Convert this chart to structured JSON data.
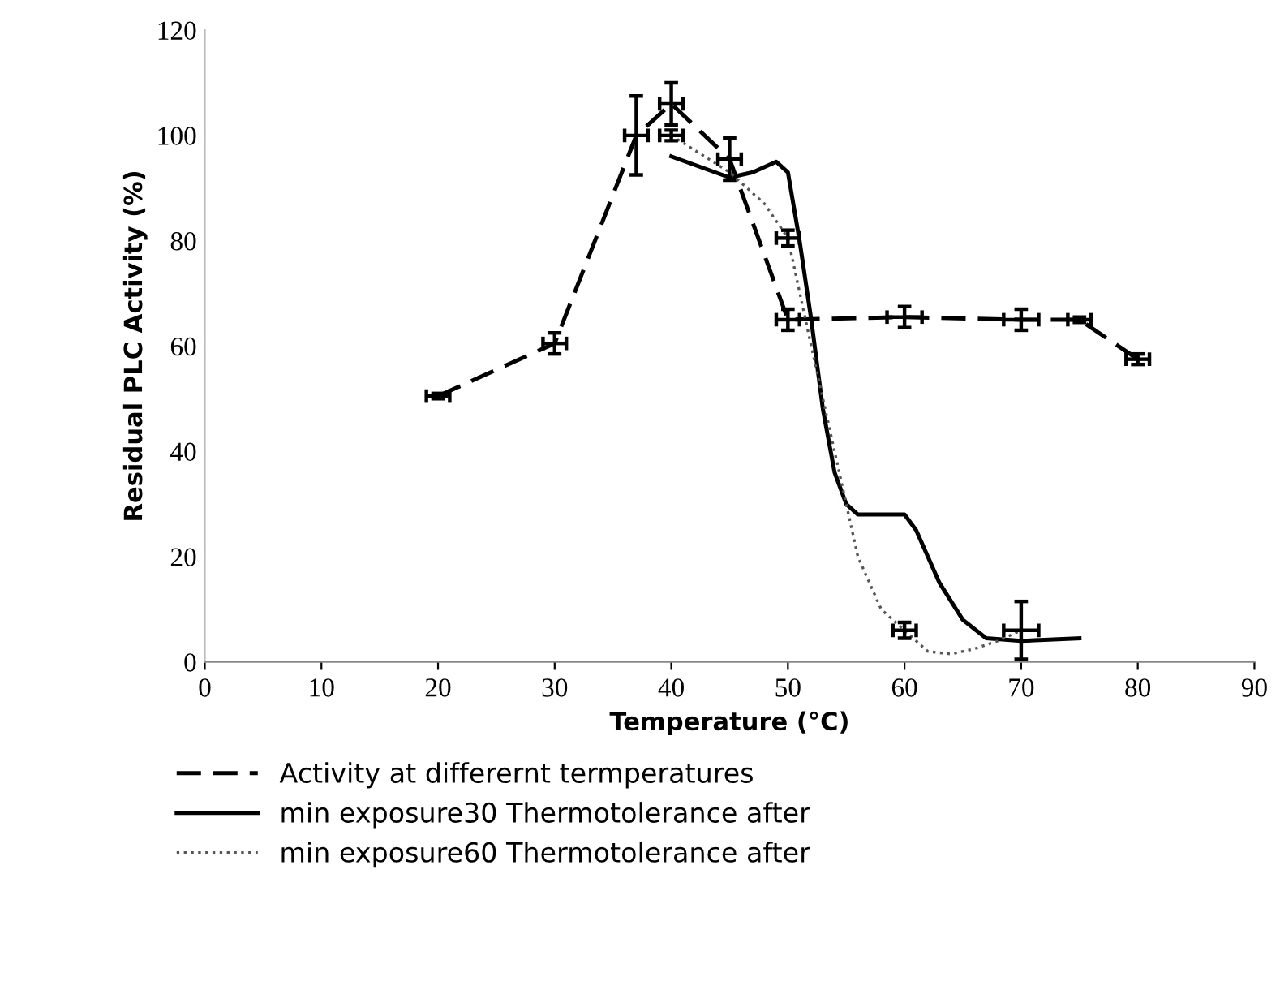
{
  "chart_data": {
    "type": "line",
    "xlabel": "Temperature (°C)",
    "ylabel": "Residual PLC Activity (%)",
    "xlim": [
      0,
      90
    ],
    "xticks": [
      0,
      10,
      20,
      30,
      40,
      50,
      60,
      70,
      80,
      90
    ],
    "ylim": [
      0,
      120
    ],
    "yticks": [
      0,
      20,
      40,
      60,
      80,
      100,
      120
    ],
    "grid": false,
    "legend": "bottom",
    "marker": "none",
    "series": [
      {
        "name": "Activity at differernt termperatures",
        "color": "#000000",
        "line_style": "dashed",
        "x": [
          20,
          30,
          37,
          40,
          45,
          50,
          60,
          70,
          75,
          80
        ],
        "values": [
          50.5,
          60.5,
          100,
          106,
          95.5,
          65,
          65.5,
          65,
          65,
          57.5
        ],
        "errors": [
          0.5,
          2,
          7.5,
          4,
          4,
          2,
          2,
          2,
          0.5,
          1
        ],
        "xerrors": [
          1,
          1,
          1,
          1,
          1,
          1,
          1.5,
          1.5,
          1,
          1
        ]
      },
      {
        "name": "min exposure30 Thermotolerance after",
        "color": "#000000",
        "line_style": "solid",
        "x": [
          40,
          45,
          47,
          49,
          50,
          51,
          52,
          53,
          54,
          55,
          56,
          58,
          60,
          61,
          63,
          65,
          67,
          70,
          75
        ],
        "values": [
          96,
          92,
          93,
          95,
          93,
          80,
          65,
          48,
          36,
          30,
          28,
          28,
          28,
          25,
          15,
          8,
          4.5,
          4,
          4.5
        ]
      },
      {
        "name": "min exposure60 Thermotolerance after",
        "color": "#555555",
        "line_style": "dotted",
        "x": [
          40,
          45,
          48,
          50,
          52,
          54,
          56,
          58,
          60,
          62,
          64,
          66,
          68,
          70
        ],
        "values": [
          100,
          93,
          87,
          80.5,
          60,
          40,
          20,
          10,
          6,
          2,
          1.5,
          2.5,
          4,
          6
        ],
        "errors": [
          1,
          null,
          null,
          1.5,
          null,
          null,
          null,
          null,
          1.5,
          null,
          null,
          null,
          null,
          5.5
        ],
        "xerrors": [
          1,
          null,
          null,
          1,
          null,
          null,
          null,
          null,
          1,
          null,
          null,
          null,
          null,
          1.5
        ]
      }
    ]
  }
}
